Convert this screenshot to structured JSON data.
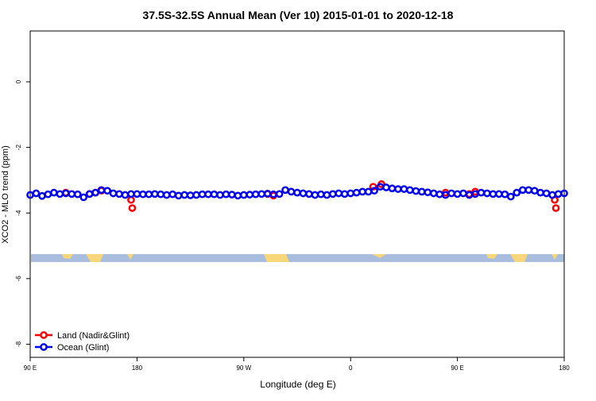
{
  "chart_data": {
    "type": "scatter",
    "title": "37.5S-32.5S Annual Mean (Ver 10)   2015-01-01 to 2020-12-18",
    "x_label": "Longitude (deg E)",
    "y_label": "XCO2 - MLO trend (ppm)",
    "xlim": [
      90,
      540
    ],
    "ylim": [
      -8.4,
      1.55
    ],
    "xticks": [
      {
        "value": 90,
        "label": "90 E"
      },
      {
        "value": 180,
        "label": "180"
      },
      {
        "value": 270,
        "label": "90 W"
      },
      {
        "value": 360,
        "label": "0"
      },
      {
        "value": 450,
        "label": "90 E"
      },
      {
        "value": 540,
        "label": "180"
      }
    ],
    "yticks": [
      -8,
      -6,
      -4,
      -2,
      0
    ],
    "legend": "bottom-left",
    "series": [
      {
        "name": "Land (Nadir&Glint)",
        "color": "#ff0000",
        "x": [
          120,
          140,
          145,
          150,
          175,
          176,
          290,
          295,
          379,
          386,
          440,
          460,
          465,
          532,
          533
        ],
        "values": [
          -3.38,
          -3.42,
          -3.38,
          -3.32,
          -3.6,
          -3.85,
          -3.42,
          -3.47,
          -3.2,
          -3.12,
          -3.38,
          -3.42,
          -3.35,
          -3.6,
          -3.85
        ]
      },
      {
        "name": "Ocean (Glint)",
        "color": "#0000ee",
        "x": [
          90,
          95,
          100,
          105,
          110,
          115,
          120,
          125,
          130,
          135,
          140,
          145,
          150,
          155,
          160,
          165,
          170,
          175,
          180,
          185,
          190,
          195,
          200,
          205,
          210,
          215,
          220,
          225,
          230,
          235,
          240,
          245,
          250,
          255,
          260,
          265,
          270,
          275,
          280,
          285,
          290,
          295,
          300,
          305,
          310,
          315,
          320,
          325,
          330,
          335,
          340,
          345,
          350,
          355,
          360,
          365,
          370,
          375,
          380,
          385,
          390,
          395,
          400,
          405,
          410,
          415,
          420,
          425,
          430,
          435,
          440,
          445,
          450,
          455,
          460,
          465,
          470,
          475,
          480,
          485,
          490,
          495,
          500,
          505,
          510,
          515,
          520,
          525,
          530,
          535,
          540
        ],
        "values": [
          -3.45,
          -3.4,
          -3.48,
          -3.43,
          -3.38,
          -3.42,
          -3.4,
          -3.42,
          -3.43,
          -3.52,
          -3.42,
          -3.38,
          -3.3,
          -3.32,
          -3.4,
          -3.42,
          -3.45,
          -3.42,
          -3.42,
          -3.43,
          -3.43,
          -3.42,
          -3.43,
          -3.45,
          -3.43,
          -3.47,
          -3.45,
          -3.46,
          -3.45,
          -3.43,
          -3.43,
          -3.43,
          -3.45,
          -3.43,
          -3.44,
          -3.47,
          -3.45,
          -3.44,
          -3.43,
          -3.42,
          -3.41,
          -3.43,
          -3.42,
          -3.3,
          -3.35,
          -3.38,
          -3.4,
          -3.42,
          -3.45,
          -3.43,
          -3.45,
          -3.42,
          -3.4,
          -3.42,
          -3.4,
          -3.38,
          -3.35,
          -3.35,
          -3.32,
          -3.2,
          -3.22,
          -3.25,
          -3.27,
          -3.27,
          -3.3,
          -3.33,
          -3.35,
          -3.37,
          -3.4,
          -3.43,
          -3.45,
          -3.4,
          -3.42,
          -3.4,
          -3.45,
          -3.42,
          -3.38,
          -3.4,
          -3.42,
          -3.42,
          -3.43,
          -3.5,
          -3.38,
          -3.3,
          -3.3,
          -3.32,
          -3.38,
          -3.4,
          -3.45,
          -3.42,
          -3.4
        ]
      }
    ]
  }
}
